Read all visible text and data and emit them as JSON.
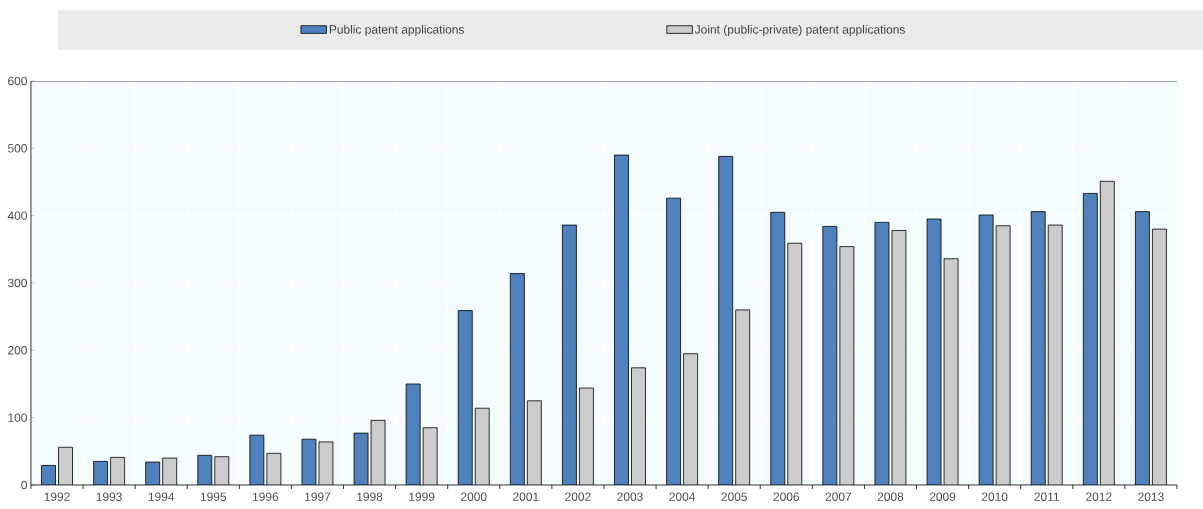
{
  "chart_data": {
    "type": "bar",
    "categories": [
      "1992",
      "1993",
      "1994",
      "1995",
      "1996",
      "1997",
      "1998",
      "1999",
      "2000",
      "2001",
      "2002",
      "2003",
      "2004",
      "2005",
      "2006",
      "2007",
      "2008",
      "2009",
      "2010",
      "2011",
      "2012",
      "2013"
    ],
    "series": [
      {
        "name": "Public patent applications",
        "color": "#4f81bd",
        "values": [
          29,
          35,
          34,
          44,
          74,
          68,
          77,
          150,
          259,
          314,
          386,
          490,
          426,
          488,
          405,
          384,
          390,
          395,
          401,
          406,
          433,
          406
        ]
      },
      {
        "name": "Joint (public-private) patent applications",
        "color": "#cccccc",
        "values": [
          56,
          41,
          40,
          42,
          47,
          64,
          96,
          85,
          114,
          125,
          144,
          174,
          195,
          260,
          359,
          354,
          378,
          336,
          385,
          386,
          451,
          380
        ]
      }
    ],
    "ylim": [
      0,
      600
    ],
    "yticks": [
      0,
      100,
      200,
      300,
      400,
      500,
      600
    ],
    "grid": true,
    "legend": "top"
  }
}
